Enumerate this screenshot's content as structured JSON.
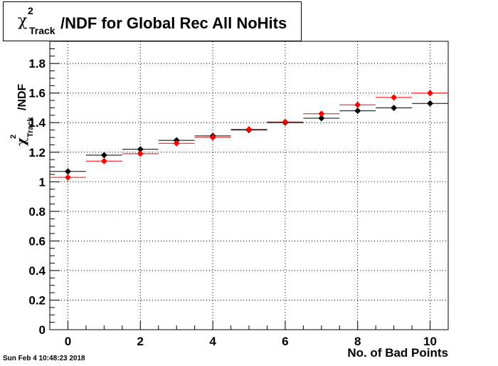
{
  "title": {
    "symbol": "χ",
    "superscript": "2",
    "subscript": "Track",
    "text": "/NDF for Global Rec All NoHits"
  },
  "ylabel": {
    "symbol": "χ",
    "superscript": "2",
    "subscript": "Track",
    "text": "/NDF"
  },
  "xlabel": "No. of Bad Points",
  "timestamp": "Sun Feb  4 10:48:23 2018",
  "chart_data": {
    "type": "scatter",
    "title": "χ²_Track/NDF for Global Rec All NoHits",
    "xlabel": "No. of Bad Points",
    "ylabel": "χ²_Track/NDF",
    "xlim": [
      -0.5,
      10.5
    ],
    "ylim": [
      0,
      1.95
    ],
    "x_ticks": [
      0,
      2,
      4,
      6,
      8,
      10
    ],
    "y_ticks": [
      0,
      0.2,
      0.4,
      0.6,
      0.8,
      1,
      1.2,
      1.4,
      1.6,
      1.8
    ],
    "y_tick_labels": [
      "0",
      "0.2",
      "0.4",
      "0.6",
      "0.8",
      "1",
      "1.2",
      "1.4",
      "1.6",
      "1.8"
    ],
    "grid": true,
    "bin_width": 1,
    "series": [
      {
        "color": "#000000",
        "x": [
          0,
          1,
          2,
          3,
          4,
          5,
          6,
          7,
          8,
          9,
          10
        ],
        "values": [
          1.07,
          1.18,
          1.22,
          1.28,
          1.31,
          1.35,
          1.4,
          1.43,
          1.48,
          1.5,
          1.53
        ]
      },
      {
        "color": "#ff0000",
        "x": [
          0,
          1,
          2,
          3,
          4,
          5,
          6,
          7,
          8,
          9,
          10
        ],
        "values": [
          1.03,
          1.14,
          1.19,
          1.26,
          1.3,
          1.355,
          1.405,
          1.46,
          1.52,
          1.57,
          1.6
        ]
      }
    ]
  }
}
